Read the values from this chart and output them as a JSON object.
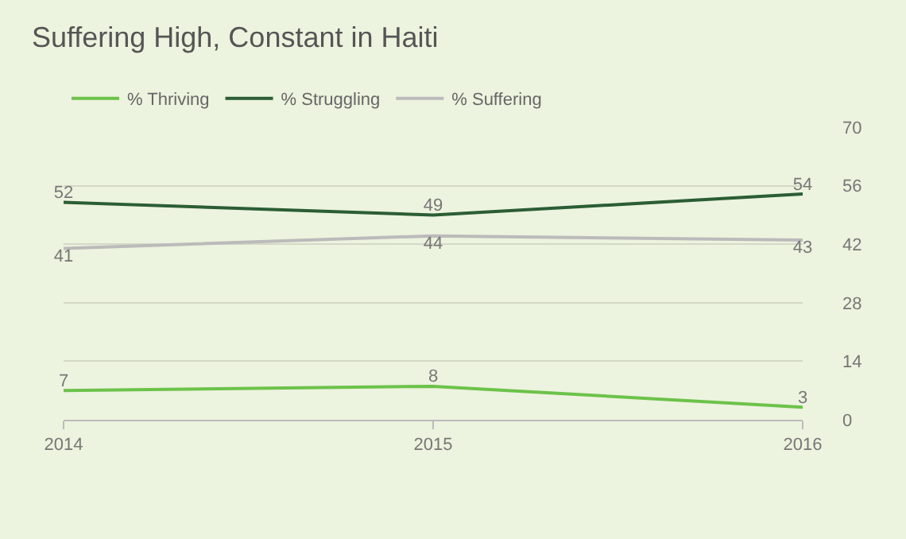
{
  "chart_data": {
    "type": "line",
    "title": "Suffering High, Constant in Haiti",
    "x": [
      2014,
      2015,
      2016
    ],
    "series": [
      {
        "name": "% Thriving",
        "color": "#6cc24a",
        "values": [
          7,
          8,
          3
        ]
      },
      {
        "name": "% Struggling",
        "color": "#2b5d34",
        "values": [
          52,
          49,
          54
        ]
      },
      {
        "name": "% Suffering",
        "color": "#bbbbbb",
        "values": [
          41,
          44,
          43
        ]
      }
    ],
    "xlim": [
      2014,
      2016
    ],
    "xticks": [
      2014,
      2015,
      2016
    ],
    "ylim": [
      0,
      70
    ],
    "yticks": [
      0,
      14,
      28,
      42,
      56,
      70
    ],
    "grid": "y",
    "legend": "top left",
    "marker": "none",
    "line_style": "solid",
    "data_labels": true
  }
}
